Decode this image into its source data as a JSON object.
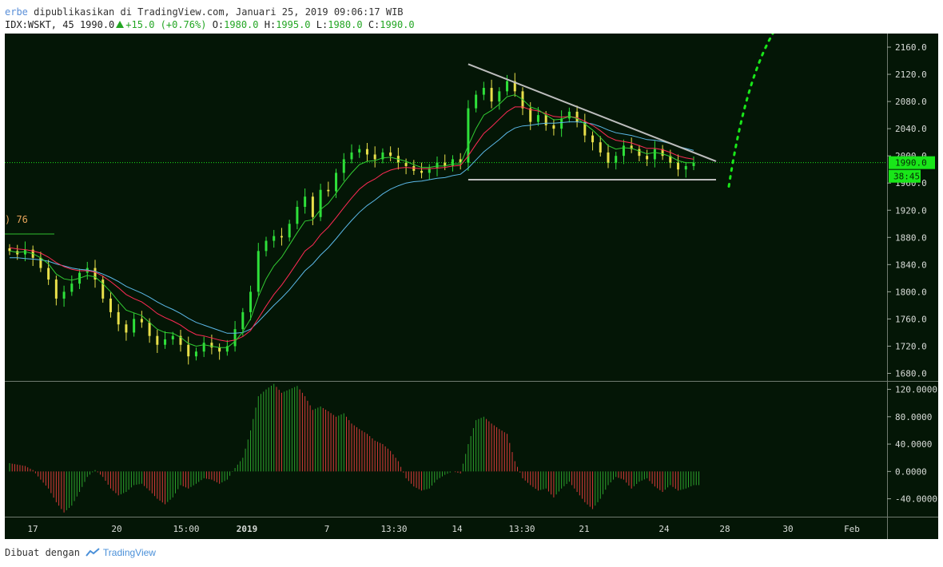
{
  "header": {
    "user": "erbe",
    "published_text": "dipublikasikan di TradingView.com, Januari 25, 2019 09:06:17 WIB",
    "symbol": "IDX:WSKT, 45",
    "last": "1990.0",
    "change": "+15.0 (+0.76%)",
    "o_label": "O:",
    "o_value": "1980.0",
    "h_label": "H:",
    "h_value": "1995.0",
    "l_label": "L:",
    "l_value": "1980.0",
    "c_label": "C:",
    "c_value": "1990.0"
  },
  "footer": {
    "made_with": "Dibuat dengan",
    "brand": "TradingView"
  },
  "colors": {
    "background": "#041606",
    "up": "#2ee03a",
    "down": "#e8e04a",
    "ema_green": "#33cc33",
    "ema_red": "#ff2a55",
    "ema_blue": "#5bb8e8",
    "hist_up": "#2ca02c",
    "hist_down": "#d83a3a",
    "trendline": "#bdbdbd",
    "projection": "#19e619",
    "price_tag": "#19e619"
  },
  "chart_data": {
    "type": "candlestick",
    "price_axis": {
      "ticks": [
        "2160.0",
        "2120.0",
        "2080.0",
        "2040.0",
        "2000.0",
        "1960.0",
        "1920.0",
        "1880.0",
        "1840.0",
        "1800.0",
        "1760.0",
        "1720.0",
        "1680.0"
      ],
      "range": [
        1670,
        2180
      ],
      "last_price_label": "1990.0",
      "countdown_label": "38:45"
    },
    "indicator_axis": {
      "ticks": [
        "120.0000",
        "80.0000",
        "40.0000",
        "0.0000",
        "-40.0000"
      ],
      "range": [
        -65,
        130
      ]
    },
    "time_axis_labels": [
      "17",
      "20",
      "15:00",
      "2019",
      "7",
      "13:30",
      "14",
      "13:30",
      "21",
      "24",
      "28",
      "30",
      "Feb"
    ],
    "left_partial_label": ") 76",
    "closes": [
      1860,
      1855,
      1862,
      1850,
      1835,
      1818,
      1790,
      1800,
      1812,
      1828,
      1835,
      1818,
      1790,
      1770,
      1752,
      1740,
      1760,
      1755,
      1735,
      1722,
      1730,
      1735,
      1722,
      1705,
      1712,
      1725,
      1718,
      1712,
      1720,
      1745,
      1770,
      1800,
      1860,
      1875,
      1882,
      1880,
      1900,
      1925,
      1940,
      1910,
      1950,
      1948,
      1975,
      1995,
      2005,
      2010,
      2002,
      1995,
      2005,
      2000,
      1990,
      1985,
      1978,
      1975,
      1982,
      1990,
      1985,
      1995,
      1990,
      2070,
      2090,
      2100,
      2080,
      2095,
      2110,
      2095,
      2070,
      2050,
      2060,
      2045,
      2040,
      2055,
      2065,
      2050,
      2030,
      2020,
      2005,
      1990,
      2000,
      2015,
      2010,
      2000,
      1995,
      2010,
      2000,
      1990,
      1980,
      1985,
      1990
    ],
    "ema_fast": [
      1860,
      1858,
      1859,
      1856,
      1850,
      1841,
      1826,
      1819,
      1817,
      1820,
      1824,
      1822,
      1812,
      1800,
      1786,
      1773,
      1769,
      1765,
      1755,
      1745,
      1740,
      1739,
      1733,
      1724,
      1720,
      1722,
      1720,
      1718,
      1718,
      1727,
      1741,
      1760,
      1793,
      1819,
      1838,
      1851,
      1869,
      1887,
      1904,
      1906,
      1921,
      1930,
      1945,
      1961,
      1975,
      1987,
      1992,
      1993,
      1997,
      1998,
      1995,
      1992,
      1987,
      1983,
      1983,
      1985,
      1985,
      1988,
      1988,
      2015,
      2040,
      2060,
      2067,
      2076,
      2087,
      2090,
      2083,
      2072,
      2068,
      2060,
      2053,
      2054,
      2058,
      2055,
      2047,
      2038,
      2027,
      2015,
      2010,
      2012,
      2011,
      2007,
      2003,
      2005,
      2003,
      1999,
      1993,
      1990,
      1990
    ],
    "ema_mid": [
      1865,
      1863,
      1862,
      1860,
      1857,
      1851,
      1843,
      1837,
      1833,
      1831,
      1831,
      1829,
      1823,
      1815,
      1806,
      1796,
      1790,
      1785,
      1777,
      1768,
      1762,
      1757,
      1751,
      1743,
      1737,
      1735,
      1732,
      1729,
      1727,
      1729,
      1734,
      1743,
      1761,
      1779,
      1796,
      1810,
      1826,
      1843,
      1860,
      1869,
      1884,
      1895,
      1909,
      1924,
      1938,
      1951,
      1960,
      1966,
      1974,
      1979,
      1982,
      1983,
      1982,
      1981,
      1981,
      1982,
      1983,
      1985,
      1986,
      2000,
      2017,
      2033,
      2043,
      2054,
      2065,
      2072,
      2072,
      2068,
      2066,
      2062,
      2058,
      2057,
      2058,
      2056,
      2051,
      2045,
      2037,
      2028,
      2023,
      2021,
      2019,
      2015,
      2011,
      2011,
      2009,
      2005,
      2000,
      1997,
      1995
    ],
    "ema_slow": [
      1850,
      1850,
      1849,
      1848,
      1847,
      1845,
      1841,
      1838,
      1835,
      1833,
      1832,
      1830,
      1826,
      1821,
      1815,
      1808,
      1803,
      1798,
      1792,
      1785,
      1779,
      1774,
      1768,
      1761,
      1755,
      1751,
      1747,
      1743,
      1739,
      1739,
      1740,
      1745,
      1756,
      1768,
      1780,
      1791,
      1803,
      1817,
      1831,
      1841,
      1854,
      1865,
      1878,
      1892,
      1905,
      1917,
      1927,
      1935,
      1944,
      1951,
      1956,
      1960,
      1962,
      1963,
      1965,
      1967,
      1968,
      1971,
      1973,
      1982,
      1994,
      2006,
      2015,
      2024,
      2034,
      2041,
      2044,
      2045,
      2047,
      2048,
      2048,
      2049,
      2050,
      2050,
      2049,
      2047,
      2043,
      2038,
      2034,
      2032,
      2030,
      2027,
      2024,
      2023,
      2021,
      2018,
      2014,
      2011,
      2008
    ],
    "histogram": [
      12,
      10,
      8,
      2,
      -12,
      -25,
      -45,
      -60,
      -50,
      -30,
      -8,
      2,
      -8,
      -25,
      -35,
      -30,
      -20,
      -18,
      -28,
      -40,
      -48,
      -38,
      -20,
      -25,
      -18,
      -10,
      -12,
      -18,
      -12,
      5,
      20,
      60,
      110,
      120,
      128,
      115,
      120,
      125,
      110,
      90,
      95,
      88,
      80,
      85,
      70,
      62,
      55,
      45,
      40,
      30,
      15,
      -10,
      -22,
      -28,
      -25,
      -12,
      -5,
      0,
      -3,
      40,
      75,
      80,
      70,
      62,
      55,
      15,
      -10,
      -20,
      -28,
      -25,
      -38,
      -25,
      -15,
      -30,
      -45,
      -55,
      -40,
      -20,
      -8,
      -12,
      -25,
      -15,
      -10,
      -22,
      -30,
      -20,
      -28,
      -25,
      -20
    ],
    "trendline_labels": []
  }
}
